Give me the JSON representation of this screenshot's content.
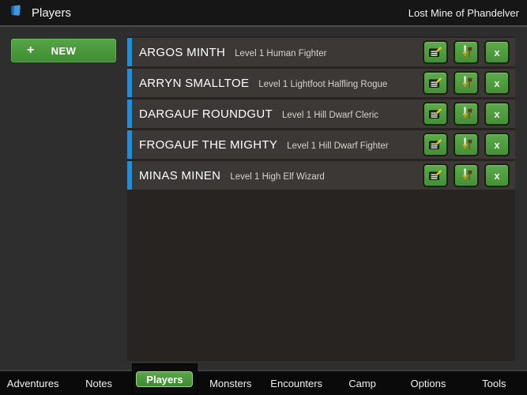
{
  "header": {
    "title": "Players",
    "campaign": "Lost Mine of Phandelver"
  },
  "toolbar": {
    "new_label": "NEW",
    "plus_icon": "+"
  },
  "players": [
    {
      "name": "ARGOS MINTH",
      "details": "Level 1 Human Fighter"
    },
    {
      "name": "ARRYN SMALLTOE",
      "details": "Level 1 Lightfoot Halfling Rogue"
    },
    {
      "name": "DARGAUF ROUNDGUT",
      "details": "Level 1 Hill Dwarf Cleric"
    },
    {
      "name": "FROGAUF THE MIGHTY",
      "details": "Level 1 Hill Dwarf Fighter"
    },
    {
      "name": "MINAS MINEN",
      "details": "Level 1 High Elf Wizard"
    }
  ],
  "row_actions": {
    "edit_icon": "notepad-pencil-icon",
    "equipment_icon": "sword-axe-icon",
    "delete_label": "x"
  },
  "tabs": [
    {
      "label": "Adventures",
      "active": false
    },
    {
      "label": "Notes",
      "active": false
    },
    {
      "label": "Players",
      "active": true
    },
    {
      "label": "Monsters",
      "active": false
    },
    {
      "label": "Encounters",
      "active": false
    },
    {
      "label": "Camp",
      "active": false
    },
    {
      "label": "Options",
      "active": false
    },
    {
      "label": "Tools",
      "active": false
    }
  ],
  "colors": {
    "accent_green": "#4f9e41",
    "accent_blue": "#1f8fdd",
    "row_bg": "#3b3835",
    "panel_bg": "#272421",
    "tabbar_bg": "#0a0a0a"
  }
}
